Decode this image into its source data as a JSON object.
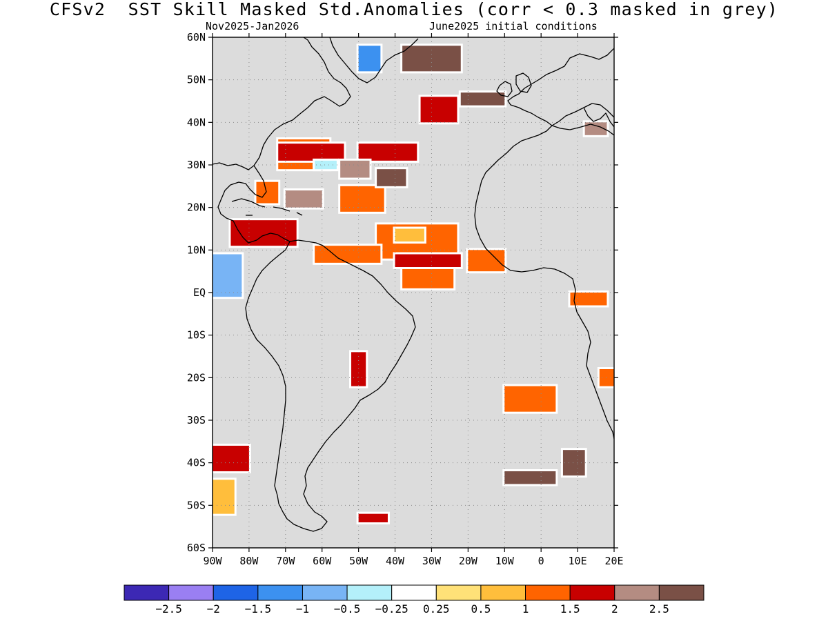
{
  "title": "CFSv2  SST Skill Masked Std.Anomalies (corr < 0.3 masked in grey)",
  "subtitle_left": "Nov2025-Jan2026",
  "subtitle_right": "June2025 initial conditions",
  "map": {
    "lon_range": [
      -90,
      20
    ],
    "lat_range": [
      -60,
      60
    ],
    "lat_ticks": [
      {
        "value": 60,
        "label": "60N"
      },
      {
        "value": 50,
        "label": "50N"
      },
      {
        "value": 40,
        "label": "40N"
      },
      {
        "value": 30,
        "label": "30N"
      },
      {
        "value": 20,
        "label": "20N"
      },
      {
        "value": 10,
        "label": "10N"
      },
      {
        "value": 0,
        "label": "EQ"
      },
      {
        "value": -10,
        "label": "10S"
      },
      {
        "value": -20,
        "label": "20S"
      },
      {
        "value": -30,
        "label": "30S"
      },
      {
        "value": -40,
        "label": "40S"
      },
      {
        "value": -50,
        "label": "50S"
      },
      {
        "value": -60,
        "label": "60S"
      }
    ],
    "lon_ticks": [
      {
        "value": -90,
        "label": "90W"
      },
      {
        "value": -80,
        "label": "80W"
      },
      {
        "value": -70,
        "label": "70W"
      },
      {
        "value": -60,
        "label": "60W"
      },
      {
        "value": -50,
        "label": "50W"
      },
      {
        "value": -40,
        "label": "40W"
      },
      {
        "value": -30,
        "label": "30W"
      },
      {
        "value": -20,
        "label": "20W"
      },
      {
        "value": -10,
        "label": "10W"
      },
      {
        "value": 0,
        "label": "0"
      },
      {
        "value": 10,
        "label": "10E"
      },
      {
        "value": 20,
        "label": "20E"
      }
    ],
    "mask_color": "#dcdcdc",
    "coast_color": "#000000",
    "regions": [
      {
        "level": 1,
        "lon": -78,
        "lat": 26,
        "w": 6,
        "h": 5
      },
      {
        "level": 1,
        "lon": -72,
        "lat": 36,
        "w": 14,
        "h": 7
      },
      {
        "level": 1,
        "lon": -55,
        "lat": 25,
        "w": 12,
        "h": 6
      },
      {
        "level": 1,
        "lon": -45,
        "lat": 16,
        "w": 22,
        "h": 8
      },
      {
        "level": 1,
        "lon": -62,
        "lat": 11,
        "w": 18,
        "h": 4
      },
      {
        "level": 1,
        "lon": -38,
        "lat": 6,
        "w": 14,
        "h": 5
      },
      {
        "level": 1,
        "lon": -20,
        "lat": 10,
        "w": 10,
        "h": 5
      },
      {
        "level": 1.5,
        "lon": -72,
        "lat": 35,
        "w": 18,
        "h": 4
      },
      {
        "level": 1.5,
        "lon": -50,
        "lat": 35,
        "w": 16,
        "h": 4
      },
      {
        "level": 1.5,
        "lon": -85,
        "lat": 17,
        "w": 18,
        "h": 6
      },
      {
        "level": 1.5,
        "lon": -40,
        "lat": 9,
        "w": 18,
        "h": 3
      },
      {
        "level": 2,
        "lon": -70,
        "lat": 24,
        "w": 10,
        "h": 4
      },
      {
        "level": 2,
        "lon": -55,
        "lat": 31,
        "w": 8,
        "h": 4
      },
      {
        "level": 2.5,
        "lon": -45,
        "lat": 29,
        "w": 8,
        "h": 4
      },
      {
        "level": 2.5,
        "lon": -38,
        "lat": 58,
        "w": 16,
        "h": 6
      },
      {
        "level": -0.5,
        "lon": -62,
        "lat": 31,
        "w": 6,
        "h": 2
      },
      {
        "level": -1,
        "lon": -90,
        "lat": 9,
        "w": 8,
        "h": 10
      },
      {
        "level": -1.5,
        "lon": -50,
        "lat": 58,
        "w": 6,
        "h": 6
      },
      {
        "level": 0.5,
        "lon": -40,
        "lat": 15,
        "w": 8,
        "h": 3
      },
      {
        "level": 1.5,
        "lon": -52,
        "lat": -14,
        "w": 4,
        "h": 8
      },
      {
        "level": 1,
        "lon": -10,
        "lat": -22,
        "w": 14,
        "h": 6
      },
      {
        "level": 2.5,
        "lon": 6,
        "lat": -37,
        "w": 6,
        "h": 6
      },
      {
        "level": 1.5,
        "lon": -90,
        "lat": -36,
        "w": 10,
        "h": 6
      },
      {
        "level": 0.5,
        "lon": -90,
        "lat": -44,
        "w": 6,
        "h": 8
      },
      {
        "level": 1,
        "lon": 8,
        "lat": 0,
        "w": 10,
        "h": 3
      },
      {
        "level": 1,
        "lon": 16,
        "lat": -18,
        "w": 4,
        "h": 4
      },
      {
        "level": 2.5,
        "lon": -10,
        "lat": -42,
        "w": 14,
        "h": 3
      },
      {
        "level": 1.5,
        "lon": -50,
        "lat": -52,
        "w": 8,
        "h": 2
      },
      {
        "level": 2.5,
        "lon": -22,
        "lat": 47,
        "w": 12,
        "h": 3
      },
      {
        "level": 1.5,
        "lon": -33,
        "lat": 46,
        "w": 10,
        "h": 6
      },
      {
        "level": 2,
        "lon": 12,
        "lat": 40,
        "w": 6,
        "h": 3
      }
    ]
  },
  "colorbar": {
    "colors": [
      "#3c28b4",
      "#9a7ff2",
      "#1e64e6",
      "#3c91f0",
      "#78b4f5",
      "#b4f0fa",
      "#ffffff",
      "#ffe178",
      "#ffbe3c",
      "#ff6400",
      "#c80000",
      "#b48c82",
      "#7a5046"
    ],
    "labels": [
      "-2.5",
      "-2",
      "-1.5",
      "-1",
      "-0.5",
      "-0.25",
      "0.25",
      "0.5",
      "1",
      "1.5",
      "2",
      "2.5"
    ]
  }
}
